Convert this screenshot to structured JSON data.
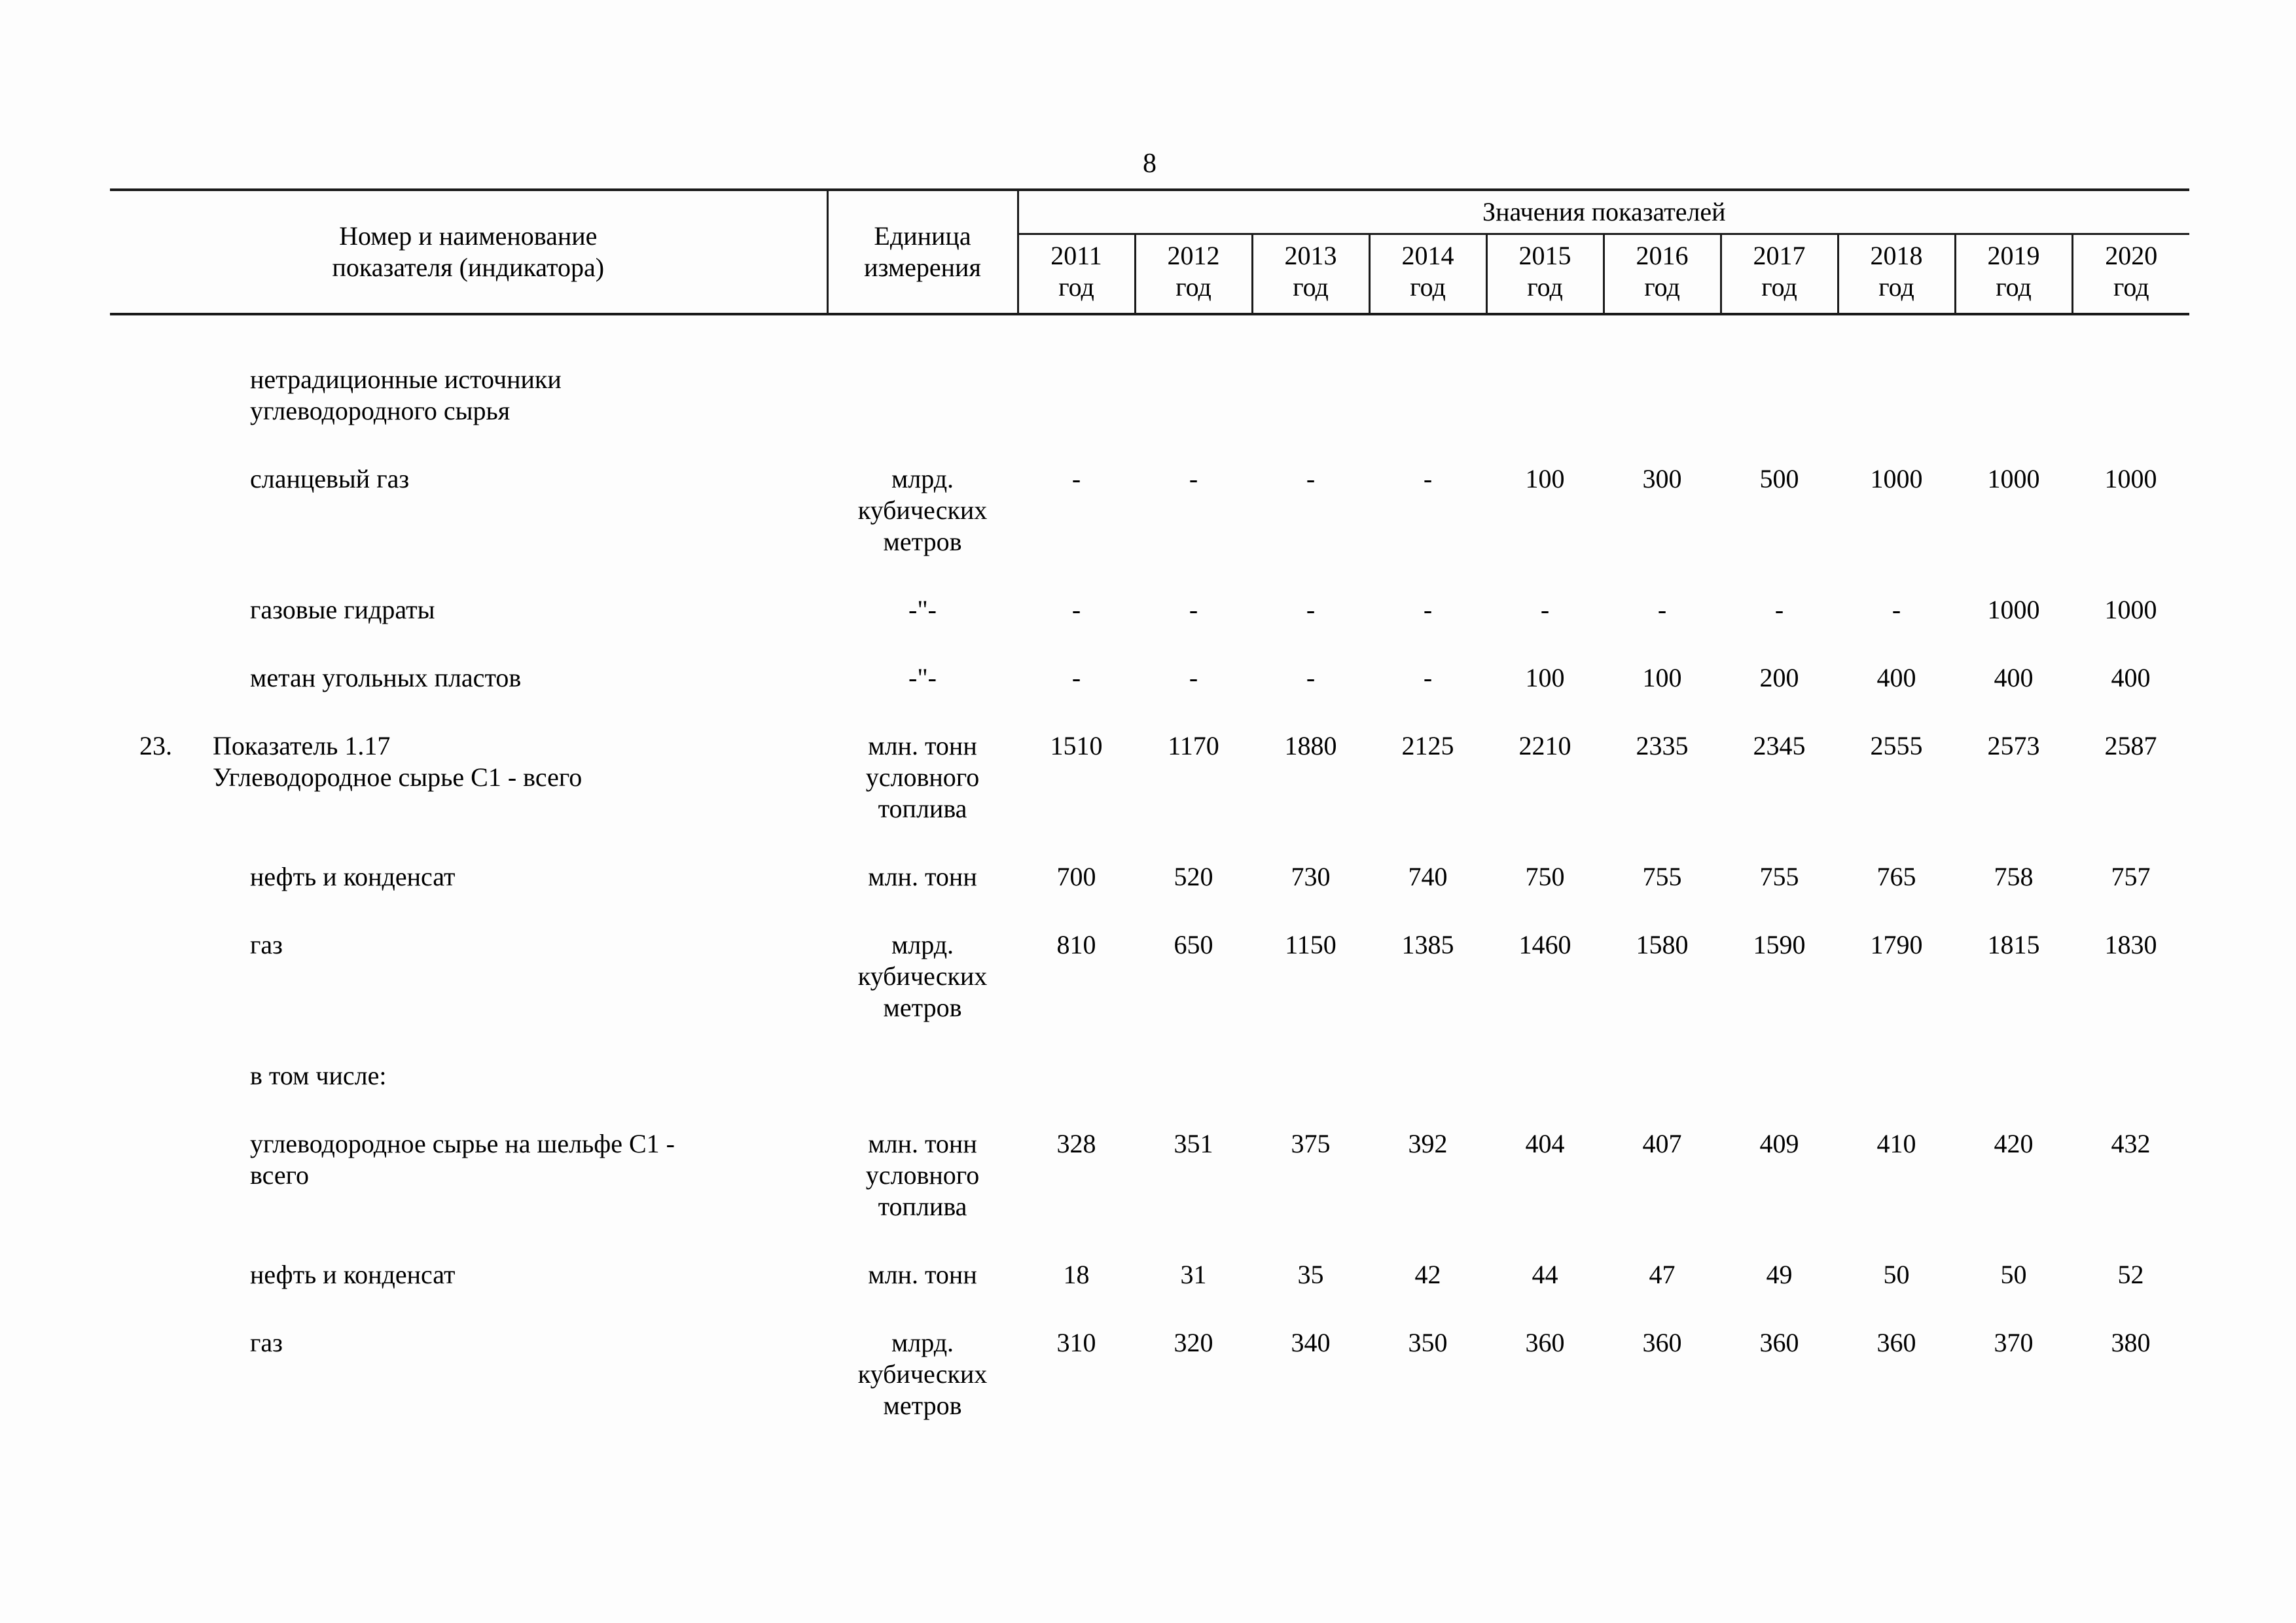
{
  "page": {
    "number": "8"
  },
  "table": {
    "header": {
      "name_col": "Номер и наименование\nпоказателя (индикатора)",
      "unit_col": "Единица\nизмерения",
      "values_group": "Значения показателей",
      "year_word": "год",
      "years": [
        "2011",
        "2012",
        "2013",
        "2014",
        "2015",
        "2016",
        "2017",
        "2018",
        "2019",
        "2020"
      ]
    },
    "rows": [
      {
        "num": "",
        "indent": 1,
        "name": "нетрадиционные источники\nуглеводородного сырья",
        "unit": "",
        "values": [
          "",
          "",
          "",
          "",
          "",
          "",
          "",
          "",
          "",
          ""
        ]
      },
      {
        "num": "",
        "indent": 1,
        "name": "сланцевый газ",
        "unit": "млрд.\nкубических\nметров",
        "values": [
          "-",
          "-",
          "-",
          "-",
          "100",
          "300",
          "500",
          "1000",
          "1000",
          "1000"
        ]
      },
      {
        "num": "",
        "indent": 1,
        "name": "газовые гидраты",
        "unit": "-\"-",
        "values": [
          "-",
          "-",
          "-",
          "-",
          "-",
          "-",
          "-",
          "-",
          "1000",
          "1000"
        ]
      },
      {
        "num": "",
        "indent": 1,
        "name": "метан угольных пластов",
        "unit": "-\"-",
        "values": [
          "-",
          "-",
          "-",
          "-",
          "100",
          "100",
          "200",
          "400",
          "400",
          "400"
        ]
      },
      {
        "num": "23.",
        "indent": 0,
        "name": "Показатель 1.17\nУглеводородное сырье С1 - всего",
        "unit": "млн. тонн\nусловного\nтоплива",
        "values": [
          "1510",
          "1170",
          "1880",
          "2125",
          "2210",
          "2335",
          "2345",
          "2555",
          "2573",
          "2587"
        ]
      },
      {
        "num": "",
        "indent": 1,
        "name": "нефть и конденсат",
        "unit": "млн. тонн",
        "values": [
          "700",
          "520",
          "730",
          "740",
          "750",
          "755",
          "755",
          "765",
          "758",
          "757"
        ]
      },
      {
        "num": "",
        "indent": 1,
        "name": "газ",
        "unit": "млрд.\nкубических\nметров",
        "values": [
          "810",
          "650",
          "1150",
          "1385",
          "1460",
          "1580",
          "1590",
          "1790",
          "1815",
          "1830"
        ]
      },
      {
        "num": "",
        "indent": 1,
        "name": "в том числе:",
        "unit": "",
        "values": [
          "",
          "",
          "",
          "",
          "",
          "",
          "",
          "",
          "",
          ""
        ]
      },
      {
        "num": "",
        "indent": 1,
        "name": "углеводородное сырье на шельфе С1 -\nвсего",
        "unit": "млн. тонн\nусловного\nтоплива",
        "values": [
          "328",
          "351",
          "375",
          "392",
          "404",
          "407",
          "409",
          "410",
          "420",
          "432"
        ]
      },
      {
        "num": "",
        "indent": 1,
        "name": "нефть и конденсат",
        "unit": "млн. тонн",
        "values": [
          "18",
          "31",
          "35",
          "42",
          "44",
          "47",
          "49",
          "50",
          "50",
          "52"
        ]
      },
      {
        "num": "",
        "indent": 1,
        "name": "газ",
        "unit": "млрд.\nкубических\nметров",
        "values": [
          "310",
          "320",
          "340",
          "350",
          "360",
          "360",
          "360",
          "360",
          "370",
          "380"
        ]
      }
    ]
  }
}
